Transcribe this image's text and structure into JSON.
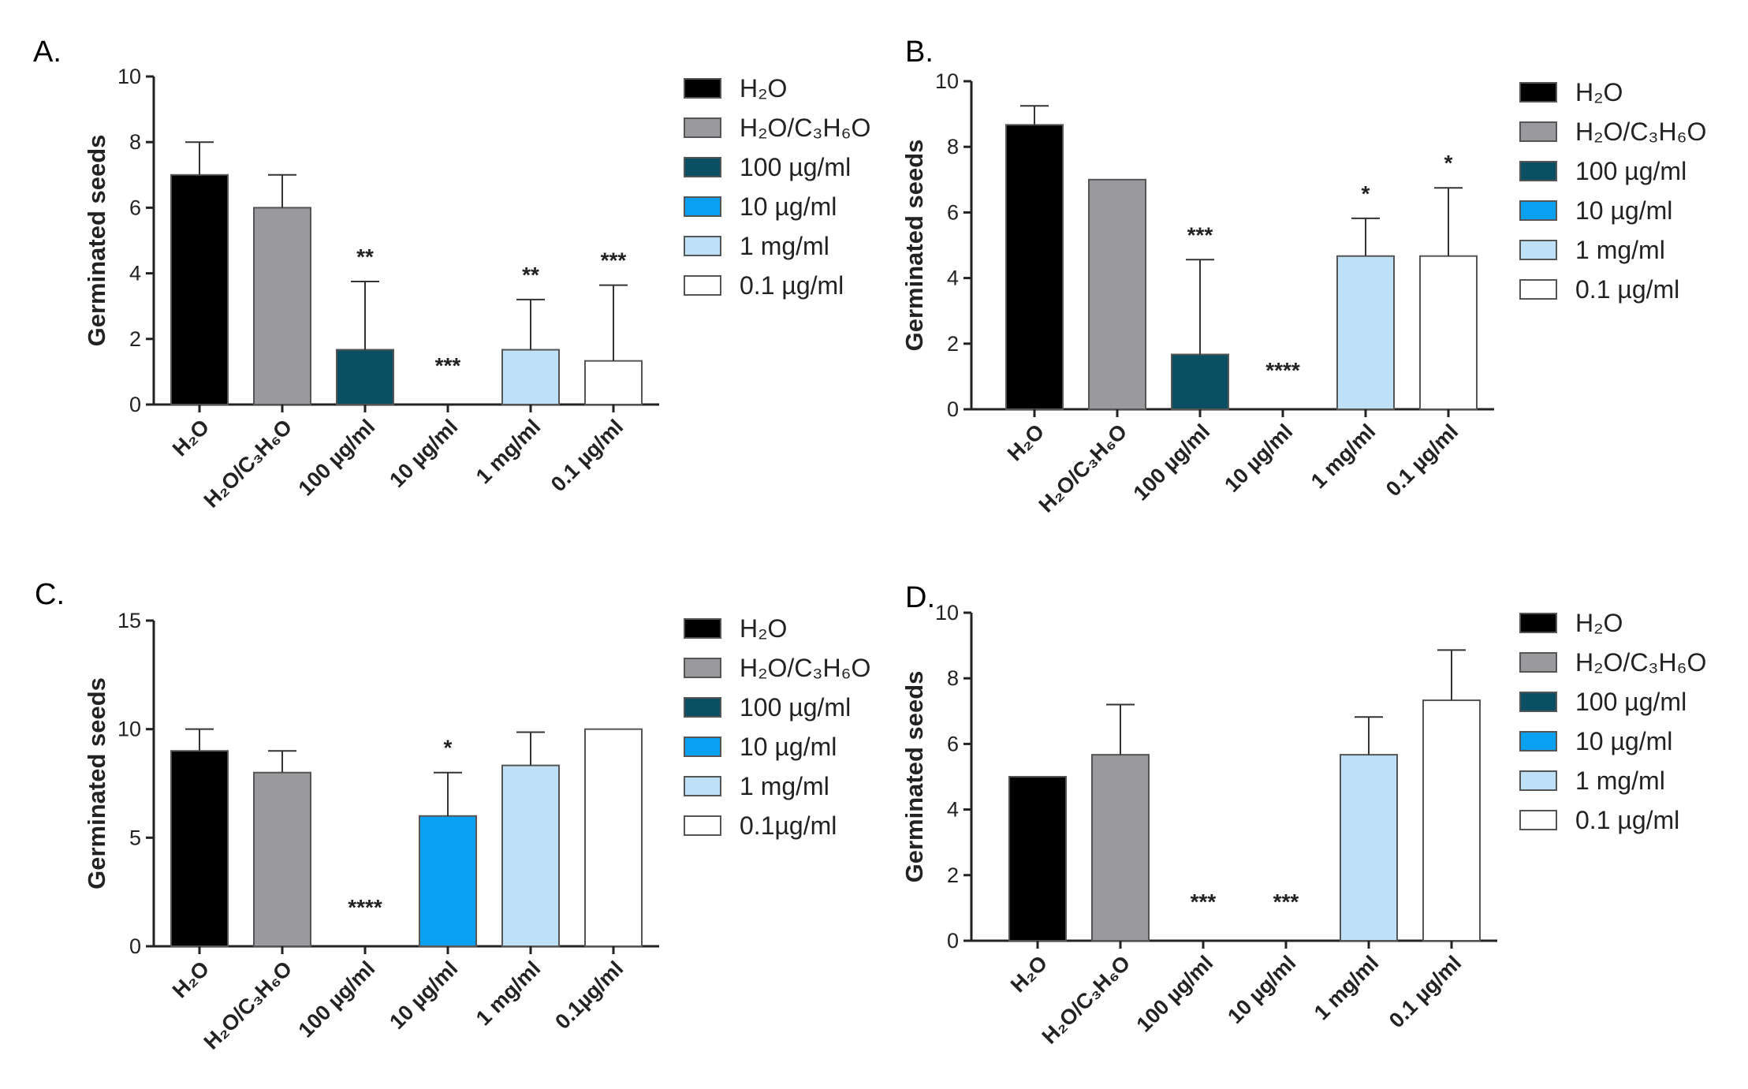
{
  "colors": {
    "H2O": "#000000",
    "H2O/C3H6O": "#9a9a9e",
    "100 µg/ml": "#0b4f63",
    "10 µg/ml": "#0aa0f2",
    "1 mg/ml": "#bfe1f7",
    "0.1 µg/ml": "#ffffff"
  },
  "chart_data": [
    {
      "panel": "A.",
      "type": "bar",
      "ylabel": "Germinated seeds",
      "ylim": [
        0,
        10
      ],
      "yticks": [
        0,
        2,
        4,
        6,
        8,
        10
      ],
      "categories": [
        "H₂O",
        "H₂O/C₃H₆O",
        "100 µg/ml",
        "10 µg/ml",
        "1 mg/ml",
        "0.1 µg/ml"
      ],
      "values": [
        7,
        6,
        1.67,
        0,
        1.67,
        1.33
      ],
      "errors": [
        1,
        1,
        2.08,
        0,
        1.53,
        2.31
      ],
      "significance": [
        "",
        "",
        "**",
        "***",
        "**",
        "***"
      ],
      "legend": [
        "H₂O",
        "H₂O/C₃H₆O",
        "100 µg/ml",
        "10 µg/ml",
        "1 mg/ml",
        "0.1 µg/ml"
      ],
      "legend_position": "right"
    },
    {
      "panel": "B.",
      "type": "bar",
      "ylabel": "Germinated seeds",
      "ylim": [
        0,
        10
      ],
      "yticks": [
        0,
        2,
        4,
        6,
        8,
        10
      ],
      "categories": [
        "H₂O",
        "H₂O/C₃H₆O",
        "100 µg/ml",
        "10 µg/ml",
        "1 mg/ml",
        "0.1 µg/ml"
      ],
      "values": [
        8.67,
        7,
        1.67,
        0,
        4.67,
        4.67
      ],
      "errors": [
        0.58,
        0,
        2.89,
        0,
        1.15,
        2.08
      ],
      "significance": [
        "",
        "",
        "***",
        "****",
        "*",
        "*"
      ],
      "legend": [
        "H₂O",
        "H₂O/C₃H₆O",
        "100 µg/ml",
        "10 µg/ml",
        "1 mg/ml",
        "0.1 µg/ml"
      ],
      "legend_position": "right"
    },
    {
      "panel": "C.",
      "type": "bar",
      "ylabel": "Germinated seeds",
      "ylim": [
        0,
        15
      ],
      "yticks": [
        0,
        5,
        10,
        15
      ],
      "categories": [
        "H₂O",
        "H₂O/C₃H₆O",
        "100 µg/ml",
        "10 µg/ml",
        "1 mg/ml",
        "0.1µg/ml"
      ],
      "values": [
        9,
        8,
        0,
        6,
        8.33,
        10
      ],
      "errors": [
        1,
        1,
        0,
        2,
        1.53,
        0
      ],
      "significance": [
        "",
        "",
        "****",
        "*",
        "",
        ""
      ],
      "legend": [
        "H₂O",
        "H₂O/C₃H₆O",
        "100 µg/ml",
        "10 µg/ml",
        "1 mg/ml",
        "0.1µg/ml"
      ],
      "legend_position": "right"
    },
    {
      "panel": "D.",
      "type": "bar",
      "ylabel": "Germinated seeds",
      "ylim": [
        0,
        10
      ],
      "yticks": [
        0,
        2,
        4,
        6,
        8,
        10
      ],
      "categories": [
        "H₂O",
        "H₂O/C₃H₆O",
        "100 µg/ml",
        "10 µg/ml",
        "1 mg/ml",
        "0.1 µg/ml"
      ],
      "values": [
        5,
        5.67,
        0,
        0,
        5.67,
        7.33
      ],
      "errors": [
        0,
        1.53,
        0,
        0,
        1.15,
        1.53
      ],
      "significance": [
        "",
        "",
        "***",
        "***",
        "",
        ""
      ],
      "legend": [
        "H₂O",
        "H₂O/C₃H₆O",
        "100 µg/ml",
        "10 µg/ml",
        "1 mg/ml",
        "0.1 µg/ml"
      ],
      "legend_position": "right"
    }
  ]
}
